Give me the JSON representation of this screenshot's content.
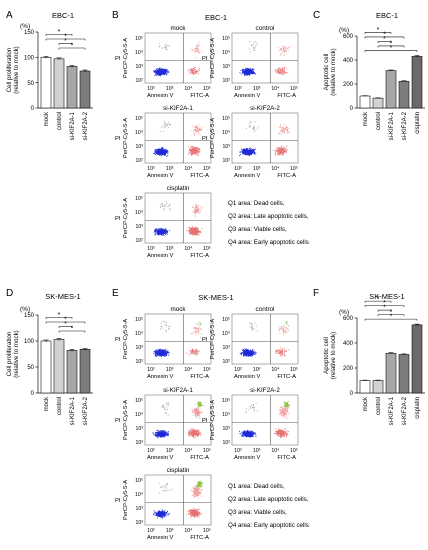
{
  "figure": {
    "top_row": {
      "cell_line": "EBC-1",
      "panel_letters": {
        "proliferation": "A",
        "flow": "B",
        "apoptosis": "C"
      }
    },
    "bottom_row": {
      "cell_line": "SK-MES-1",
      "panel_letters": {
        "proliferation": "D",
        "flow": "E",
        "apoptosis": "F"
      }
    },
    "proliferation_ylabel": "Cell proliferation",
    "proliferation_ylabel2": "(relative to mock)",
    "apoptosis_ylabel": "Apoptotic cell",
    "apoptosis_ylabel2": "(relative to mock)",
    "percent_unit": "(%)",
    "significance_mark": "*",
    "flow_axis": {
      "y_title": "PerCP-Cy5-5-A",
      "y_prefix": "PI",
      "x_prefix": "Annexin V",
      "x_title": "FITC-A",
      "tick_y": [
        "10⁵",
        "10⁴",
        "10³",
        "10²"
      ],
      "tick_x": [
        "10²",
        "10³",
        "10⁴",
        "10⁵"
      ]
    },
    "flow_panels": [
      "mock",
      "control",
      "si-KIF2A-1",
      "si-KIF2A-2",
      "cisplatin"
    ],
    "quadrant_legend": [
      "Q1 area: Dead cells,",
      "Q2 area: Late apoptotic cells,",
      "Q3 area: Viable cells,",
      "Q4 area: Early apoptotic cells"
    ]
  },
  "chart_data": [
    {
      "panel": "A",
      "type": "bar",
      "title": "EBC-1",
      "ylabel": "Cell proliferation (relative to mock)",
      "unit": "(%)",
      "ylim": [
        0,
        150
      ],
      "yticks": [
        0,
        50,
        100,
        150
      ],
      "categories": [
        "mock",
        "control",
        "si-KIF2A-1",
        "si-KIF2A-2"
      ],
      "values": [
        100,
        97,
        82,
        73
      ],
      "errors": [
        2,
        2,
        2,
        2
      ],
      "colors": [
        "#ffffff",
        "#d2d2d2",
        "#a7a7a7",
        "#7d7d7d"
      ],
      "significance": [
        [
          0,
          2
        ],
        [
          0,
          3
        ],
        [
          1,
          2
        ],
        [
          1,
          3
        ]
      ]
    },
    {
      "panel": "C",
      "type": "bar",
      "title": "EBC-1",
      "ylabel": "Apoptotic cell (relative to mock)",
      "unit": "(%)",
      "ylim": [
        0,
        600
      ],
      "yticks": [
        0,
        200,
        400,
        600
      ],
      "categories": [
        "mock",
        "control",
        "si-KIF2A-1",
        "si-KIF2A-2",
        "cisplatin"
      ],
      "values": [
        100,
        82,
        312,
        222,
        430
      ],
      "errors": [
        3,
        3,
        5,
        5,
        8
      ],
      "colors": [
        "#ffffff",
        "#d2d2d2",
        "#a7a7a7",
        "#7d7d7d",
        "#6a6a6a"
      ],
      "significance": [
        [
          0,
          2
        ],
        [
          0,
          3
        ],
        [
          1,
          2
        ],
        [
          1,
          3
        ],
        [
          0,
          4
        ]
      ]
    },
    {
      "panel": "D",
      "type": "bar",
      "title": "SK-MES-1",
      "ylabel": "Cell proliferation (relative to mock)",
      "unit": "(%)",
      "ylim": [
        0,
        150
      ],
      "yticks": [
        0,
        50,
        100,
        150
      ],
      "categories": [
        "mock",
        "control",
        "si-KIF2A-1",
        "si-KIF2A-2"
      ],
      "values": [
        100,
        103,
        82,
        84
      ],
      "errors": [
        2,
        2,
        2,
        2
      ],
      "colors": [
        "#ffffff",
        "#d2d2d2",
        "#a7a7a7",
        "#7d7d7d"
      ],
      "significance": [
        [
          0,
          2
        ],
        [
          0,
          3
        ],
        [
          1,
          2
        ],
        [
          1,
          3
        ]
      ]
    },
    {
      "panel": "F",
      "type": "bar",
      "title": "SK-MES-1",
      "ylabel": "Apoptotic cell (relative to mock)",
      "unit": "(%)",
      "ylim": [
        0,
        600
      ],
      "yticks": [
        0,
        200,
        400,
        600
      ],
      "categories": [
        "mock",
        "control",
        "si-KIF2A-1",
        "si-KIF2A-2",
        "cisplatin"
      ],
      "values": [
        100,
        100,
        318,
        308,
        545
      ],
      "errors": [
        3,
        3,
        5,
        5,
        6
      ],
      "colors": [
        "#ffffff",
        "#d2d2d2",
        "#a7a7a7",
        "#7d7d7d",
        "#6a6a6a"
      ],
      "significance": [
        [
          0,
          2
        ],
        [
          0,
          3
        ],
        [
          1,
          2
        ],
        [
          1,
          3
        ],
        [
          0,
          4
        ]
      ]
    }
  ]
}
